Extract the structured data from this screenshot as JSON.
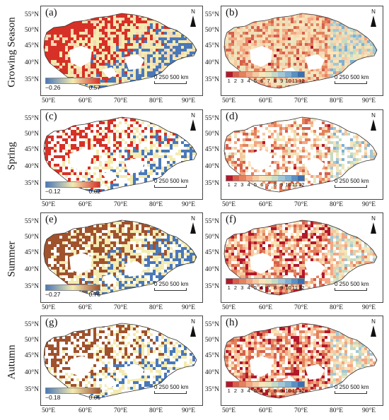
{
  "rows": [
    {
      "label": "Growing Season"
    },
    {
      "label": "Spring"
    },
    {
      "label": "Summer"
    },
    {
      "label": "Autumn"
    }
  ],
  "panels": [
    {
      "id": "a",
      "label": "(a)",
      "legend": "continuous",
      "min": "−0.26",
      "max": "0.57",
      "palette": [
        "#4a78b8",
        "#f4ebb0",
        "#d73027"
      ]
    },
    {
      "id": "b",
      "label": "(b)",
      "legend": "month",
      "months": [
        "1",
        "2",
        "3",
        "4",
        "5",
        "6",
        "7",
        "8",
        "9",
        "10",
        "11",
        "12"
      ]
    },
    {
      "id": "c",
      "label": "(c)",
      "legend": "continuous",
      "min": "−0.12",
      "max": "0.62",
      "palette": [
        "#4a78b8",
        "#f4ebb0",
        "#d73027"
      ]
    },
    {
      "id": "d",
      "label": "(d)",
      "legend": "month",
      "months": [
        "1",
        "2",
        "3",
        "4",
        "5",
        "6",
        "7",
        "8",
        "9",
        "10",
        "11",
        "12"
      ]
    },
    {
      "id": "e",
      "label": "(e)",
      "legend": "continuous",
      "min": "−0.27",
      "max": "0.76",
      "palette": [
        "#4a78b8",
        "#f4ebb0",
        "#a0522d"
      ]
    },
    {
      "id": "f",
      "label": "(f)",
      "legend": "month",
      "months": [
        "1",
        "2",
        "3",
        "4",
        "5",
        "6",
        "7",
        "8",
        "9",
        "10",
        "11",
        "12"
      ]
    },
    {
      "id": "g",
      "label": "(g)",
      "legend": "continuous",
      "min": "−0.18",
      "max": "0.66",
      "palette": [
        "#4a78b8",
        "#f4ebb0",
        "#a0522d"
      ]
    },
    {
      "id": "h",
      "label": "(h)",
      "legend": "month",
      "months": [
        "1",
        "2",
        "3",
        "4",
        "5",
        "6",
        "7",
        "8",
        "9",
        "10",
        "11",
        "12"
      ]
    }
  ],
  "x_ticks": [
    "50°E",
    "60°E",
    "70°E",
    "80°E",
    "90°E"
  ],
  "y_ticks": [
    "55°N",
    "50°N",
    "45°N",
    "40°N",
    "35°N"
  ],
  "north_label": "N",
  "scale_label": "0 250 500 km",
  "month_colors": [
    "#b2182b",
    "#d6604d",
    "#e3825c",
    "#f4a582",
    "#f6c9a0",
    "#fbe4b8",
    "#e6e6bf",
    "#c7dbc2",
    "#a4c7d6",
    "#7fb0d4",
    "#5b90c4",
    "#3b6fb0"
  ],
  "accent_colors": {
    "red": "#d73027",
    "orange": "#ee8a55",
    "yellow": "#f4ebb0",
    "blue": "#4a78b8",
    "brown": "#a0522d"
  }
}
